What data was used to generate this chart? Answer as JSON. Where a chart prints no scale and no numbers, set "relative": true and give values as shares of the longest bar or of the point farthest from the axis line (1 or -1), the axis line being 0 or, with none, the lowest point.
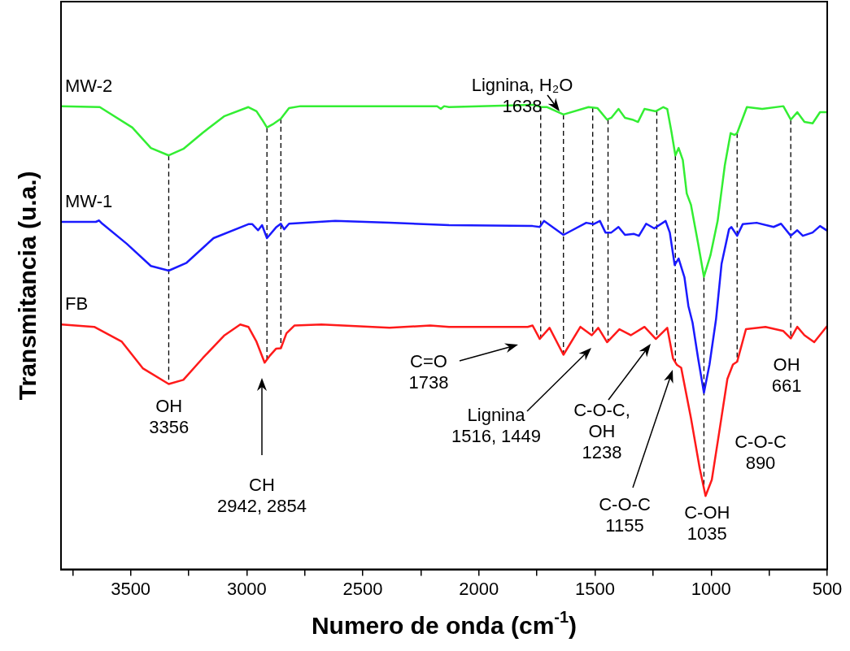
{
  "chart_data": {
    "type": "line",
    "relative": true,
    "marker": "none",
    "line_style": "solid",
    "xlabel": "Numero de onda (cm$^{-1}$)",
    "ylabel": "Transmitancia (u.a.)",
    "xlim": [
      3800,
      500
    ],
    "xticks": [
      {
        "value": 3750,
        "label": null
      },
      3500,
      {
        "value": 3250,
        "label": null
      },
      3000,
      {
        "value": 2750,
        "label": null
      },
      2500,
      {
        "value": 2250,
        "label": null
      },
      2000,
      {
        "value": 1750,
        "label": null
      },
      1500,
      {
        "value": 1250,
        "label": null
      },
      1000,
      {
        "value": 750,
        "label": null
      },
      500
    ],
    "series": [
      {
        "name": "MW-2",
        "color": "#33ee33",
        "x": [
          3797,
          3633,
          3493,
          3413,
          3336,
          3273,
          3189,
          3098,
          2993,
          2958,
          2934,
          2913,
          2888,
          2853,
          2818,
          2769,
          2180,
          2164,
          2150,
          2129,
          1769,
          1731,
          1706,
          1636,
          1528,
          1490,
          1448,
          1430,
          1399,
          1371,
          1339,
          1315,
          1287,
          1238,
          1206,
          1189,
          1171,
          1154,
          1140,
          1122,
          1105,
          1087,
          1056,
          1031,
          1003,
          972,
          941,
          916,
          899,
          888,
          846,
          780,
          689,
          657,
          629,
          598,
          563,
          531,
          500
        ],
        "values": [
          0.997,
          0.995,
          0.951,
          0.907,
          0.891,
          0.905,
          0.94,
          0.975,
          0.995,
          0.986,
          0.968,
          0.951,
          0.958,
          0.97,
          0.993,
          0.997,
          0.997,
          0.991,
          0.997,
          0.995,
          1.0,
          0.995,
          0.995,
          0.979,
          0.995,
          0.993,
          0.968,
          0.972,
          0.991,
          0.972,
          0.968,
          0.963,
          0.991,
          0.986,
          0.995,
          0.991,
          0.942,
          0.891,
          0.907,
          0.881,
          0.809,
          0.785,
          0.701,
          0.63,
          0.676,
          0.75,
          0.87,
          0.939,
          0.935,
          0.939,
          0.995,
          0.991,
          0.997,
          0.968,
          0.984,
          0.963,
          0.96,
          0.984,
          0.984
        ]
      },
      {
        "name": "MW-1",
        "color": "#1a1aff",
        "x": [
          3797,
          3650,
          3636,
          3622,
          3517,
          3413,
          3336,
          3259,
          3143,
          2993,
          2976,
          2951,
          2934,
          2913,
          2874,
          2853,
          2839,
          2818,
          2619,
          2385,
          2129,
          1769,
          1738,
          1720,
          1636,
          1538,
          1507,
          1479,
          1455,
          1430,
          1399,
          1371,
          1332,
          1311,
          1280,
          1245,
          1196,
          1178,
          1157,
          1140,
          1115,
          1098,
          1080,
          1056,
          1031,
          1007,
          979,
          955,
          923,
          913,
          888,
          864,
          804,
          731,
          699,
          657,
          629,
          605,
          563,
          531,
          500
        ],
        "values": [
          0.748,
          0.748,
          0.751,
          0.744,
          0.701,
          0.653,
          0.643,
          0.66,
          0.713,
          0.743,
          0.743,
          0.73,
          0.741,
          0.713,
          0.736,
          0.744,
          0.732,
          0.744,
          0.75,
          0.746,
          0.741,
          0.739,
          0.737,
          0.75,
          0.72,
          0.746,
          0.743,
          0.75,
          0.725,
          0.725,
          0.737,
          0.72,
          0.722,
          0.718,
          0.744,
          0.734,
          0.75,
          0.725,
          0.655,
          0.669,
          0.629,
          0.567,
          0.531,
          0.454,
          0.38,
          0.441,
          0.538,
          0.658,
          0.732,
          0.737,
          0.718,
          0.743,
          0.746,
          0.737,
          0.744,
          0.718,
          0.73,
          0.718,
          0.725,
          0.739,
          0.729
        ]
      },
      {
        "name": "FB",
        "color": "#ff1a1a",
        "x": [
          3797,
          3657,
          3538,
          3448,
          3336,
          3273,
          3189,
          3098,
          3028,
          2993,
          2958,
          2923,
          2899,
          2874,
          2853,
          2829,
          2794,
          2678,
          2385,
          2210,
          2129,
          1790,
          1769,
          1738,
          1696,
          1636,
          1563,
          1514,
          1486,
          1448,
          1395,
          1346,
          1287,
          1238,
          1189,
          1164,
          1147,
          1129,
          1087,
          1049,
          1024,
          997,
          965,
          930,
          906,
          888,
          850,
          766,
          689,
          657,
          629,
          598,
          556,
          500
        ],
        "values": [
          0.527,
          0.522,
          0.49,
          0.433,
          0.399,
          0.408,
          0.455,
          0.503,
          0.527,
          0.522,
          0.49,
          0.445,
          0.461,
          0.475,
          0.476,
          0.508,
          0.525,
          0.527,
          0.52,
          0.525,
          0.522,
          0.522,
          0.525,
          0.496,
          0.52,
          0.462,
          0.522,
          0.504,
          0.52,
          0.489,
          0.517,
          0.504,
          0.522,
          0.496,
          0.52,
          0.454,
          0.44,
          0.434,
          0.326,
          0.217,
          0.158,
          0.193,
          0.296,
          0.41,
          0.441,
          0.447,
          0.517,
          0.522,
          0.513,
          0.497,
          0.522,
          0.504,
          0.489,
          0.524
        ]
      }
    ],
    "ref_lines": [
      {
        "axis": "x",
        "value": 3336,
        "color": "#000000",
        "line_style": "dashed"
      },
      {
        "axis": "x",
        "value": 2913,
        "color": "#000000",
        "line_style": "dashed"
      },
      {
        "axis": "x",
        "value": 2853,
        "color": "#000000",
        "line_style": "dashed"
      },
      {
        "axis": "x",
        "value": 1734,
        "color": "#000000",
        "line_style": "dashed"
      },
      {
        "axis": "x",
        "value": 1636,
        "color": "#000000",
        "line_style": "dashed"
      },
      {
        "axis": "x",
        "value": 1510,
        "color": "#000000",
        "line_style": "dashed"
      },
      {
        "axis": "x",
        "value": 1444,
        "color": "#000000",
        "line_style": "dashed"
      },
      {
        "axis": "x",
        "value": 1234,
        "color": "#000000",
        "line_style": "dashed"
      },
      {
        "axis": "x",
        "value": 1154,
        "color": "#000000",
        "line_style": "dashed"
      },
      {
        "axis": "x",
        "value": 1031,
        "color": "#000000",
        "line_style": "dashed"
      },
      {
        "axis": "x",
        "value": 888,
        "color": "#000000",
        "line_style": "dashed"
      },
      {
        "axis": "x",
        "value": 657,
        "color": "#000000",
        "line_style": "dashed"
      }
    ],
    "annotations": [
      "Lignina, H₂O\n1638",
      {
        "text": "OH\n3356",
        "x": 3356,
        "y": 0.399
      },
      "CH\n2942, 2854",
      "C=O\n1738",
      "Lignina\n1516, 1449",
      "C-O-C,\nOH\n1238",
      "C-O-C\n1155",
      {
        "text": "C-OH\n1035",
        "x": 1035,
        "y": 0.158
      },
      "C-O-C\n890",
      {
        "text": "OH\n661",
        "x": 661,
        "y": 0.497
      }
    ]
  }
}
